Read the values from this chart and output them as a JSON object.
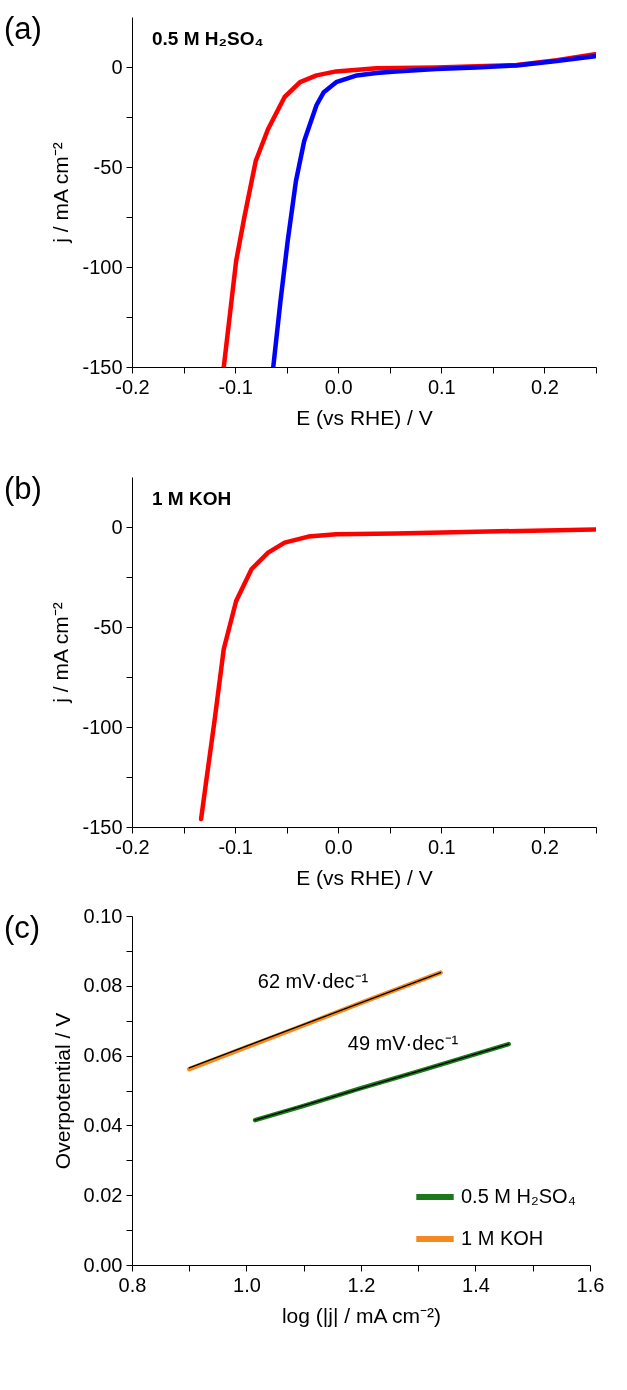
{
  "chart_data": [
    {
      "type": "line",
      "title": "(a)",
      "annotations": [
        "0.5 M H₂SO₄"
      ],
      "xlabel": "E (vs RHE) / V",
      "ylabel": "j / mA cm⁻²",
      "xlim": [
        -0.2,
        0.25
      ],
      "ylim": [
        -150,
        25
      ],
      "xticks": [
        -0.2,
        {
          "value": -0.15,
          "label": null
        },
        -0.1,
        {
          "value": -0.05,
          "label": null
        },
        {
          "value": 0,
          "label": "0.0"
        },
        {
          "value": 0.05,
          "label": null
        },
        0.1,
        {
          "value": 0.15,
          "label": null
        },
        0.2,
        {
          "value": 0.25,
          "label": null
        }
      ],
      "yticks": [
        -150,
        {
          "value": -125,
          "label": null
        },
        -100,
        {
          "value": -75,
          "label": null
        },
        -50,
        {
          "value": -25,
          "label": null
        },
        0
      ],
      "series": [
        {
          "color": "#ff0000",
          "x": [
            -0.111,
            -0.099,
            -0.091,
            -0.08,
            -0.068,
            -0.052,
            -0.037,
            -0.021,
            -0.002,
            0.037,
            0.095,
            0.173,
            0.212,
            0.249
          ],
          "values": [
            -150,
            -97,
            -75,
            -47,
            -31,
            -15,
            -7.6,
            -4.2,
            -2.2,
            -0.6,
            -0.2,
            1,
            3.4,
            6.4
          ]
        },
        {
          "color": "#0000ff",
          "x": [
            -0.063,
            -0.056,
            -0.049,
            -0.041,
            -0.033,
            -0.021,
            -0.014,
            -0.002,
            0.018,
            0.037,
            0.056,
            0.095,
            0.134,
            0.173,
            0.212,
            0.249
          ],
          "values": [
            -150,
            -117,
            -87,
            -57,
            -37,
            -19,
            -12.6,
            -7.6,
            -4.2,
            -3,
            -2.2,
            -1,
            -0.2,
            0.8,
            3,
            5.4
          ]
        }
      ]
    },
    {
      "type": "line",
      "title": "(b)",
      "annotations": [
        "1 M KOH"
      ],
      "xlabel": "E (vs RHE) / V",
      "ylabel": "j / mA cm⁻²",
      "xlim": [
        -0.2,
        0.25
      ],
      "ylim": [
        -150,
        25
      ],
      "xticks": [
        -0.2,
        {
          "value": -0.15,
          "label": null
        },
        -0.1,
        {
          "value": -0.05,
          "label": null
        },
        {
          "value": 0,
          "label": "0.0"
        },
        {
          "value": 0.05,
          "label": null
        },
        0.1,
        {
          "value": 0.15,
          "label": null
        },
        0.2,
        {
          "value": 0.25,
          "label": null
        }
      ],
      "yticks": [
        -150,
        {
          "value": -125,
          "label": null
        },
        -100,
        {
          "value": -75,
          "label": null
        },
        -50,
        {
          "value": -25,
          "label": null
        },
        0
      ],
      "series": [
        {
          "color": "#ff0000",
          "x": [
            -0.133,
            -0.128,
            -0.12,
            -0.111,
            -0.099,
            -0.084,
            -0.068,
            -0.052,
            -0.029,
            -0.002,
            0.056,
            0.134,
            0.249
          ],
          "values": [
            -146,
            -127,
            -97,
            -61,
            -37,
            -21,
            -12.8,
            -7.8,
            -4.8,
            -3.6,
            -3.2,
            -2.4,
            -1.2
          ]
        }
      ]
    },
    {
      "type": "line",
      "title": "(c)",
      "xlabel": "log (|j| / mA cm⁻²)",
      "ylabel": "Overpotential / V",
      "xlim": [
        0.8,
        1.6
      ],
      "ylim": [
        0,
        0.1
      ],
      "legend": "bottom right",
      "annotations": [
        "62 mV·dec⁻¹",
        "49 mV·dec⁻¹"
      ],
      "xticks": [
        0.8,
        {
          "value": 0.9,
          "label": null
        },
        {
          "value": 1,
          "label": "1.0"
        },
        {
          "value": 1.1,
          "label": null
        },
        1.2,
        {
          "value": 1.3,
          "label": null
        },
        1.4,
        {
          "value": 1.5,
          "label": null
        },
        1.6
      ],
      "yticks": [
        {
          "value": 0,
          "label": "0.00"
        },
        {
          "value": 0.01,
          "label": null
        },
        0.02,
        {
          "value": 0.03,
          "label": null
        },
        0.04,
        {
          "value": 0.05,
          "label": null
        },
        0.06,
        {
          "value": 0.07,
          "label": null
        },
        0.08,
        {
          "value": 0.09,
          "label": null
        },
        {
          "value": 0.1,
          "label": "0.10"
        }
      ],
      "series": [
        {
          "name": "0.5 M H₂SO₄",
          "color": "#1a7a1a",
          "x": [
            1.015,
            1.1,
            1.2,
            1.3,
            1.458
          ],
          "values": [
            0.0415,
            0.0456,
            0.0507,
            0.0555,
            0.0633
          ]
        },
        {
          "name": "1 M KOH",
          "color": "#f5891f",
          "x": [
            0.9,
            1.0,
            1.1,
            1.2,
            1.339
          ],
          "values": [
            0.0561,
            0.0624,
            0.0687,
            0.0751,
            0.0838
          ]
        },
        {
          "type": "line",
          "color": "#000000",
          "x": [
            1.015,
            1.458
          ],
          "values": [
            0.0415,
            0.0633
          ]
        },
        {
          "type": "line",
          "color": "#000000",
          "x": [
            0.9,
            1.339
          ],
          "values": [
            0.0565,
            0.0838
          ]
        }
      ]
    }
  ]
}
